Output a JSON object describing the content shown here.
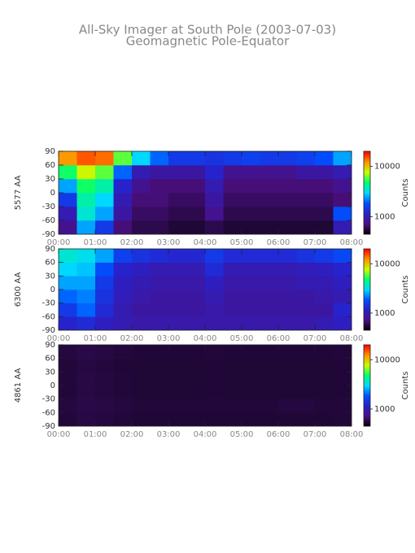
{
  "title": "All-Sky Imager at South Pole (2003-07-03)",
  "subtitle": "Geomagnetic Pole-Equator",
  "chart_data": [
    {
      "type": "heatmap",
      "ylabel": "5577 AA",
      "xbins": [
        0,
        0.5,
        1,
        1.5,
        2,
        2.5,
        3,
        3.5,
        4,
        4.5,
        5,
        5.5,
        6,
        6.5,
        7,
        7.5,
        8
      ],
      "ybins": [
        -90,
        -60,
        -30,
        0,
        30,
        60,
        90
      ],
      "z": [
        [
          800,
          2500,
          1500,
          700,
          600,
          600,
          550,
          550,
          600,
          550,
          550,
          550,
          550,
          550,
          550,
          1000
        ],
        [
          1000,
          3500,
          2500,
          900,
          650,
          650,
          600,
          600,
          800,
          600,
          600,
          600,
          600,
          600,
          600,
          1800
        ],
        [
          1500,
          4000,
          3000,
          1000,
          700,
          700,
          650,
          650,
          900,
          650,
          650,
          650,
          650,
          650,
          650,
          700
        ],
        [
          2500,
          5000,
          4000,
          1200,
          800,
          700,
          700,
          700,
          1000,
          700,
          700,
          700,
          700,
          700,
          700,
          800
        ],
        [
          5000,
          8000,
          6000,
          2000,
          1000,
          900,
          900,
          900,
          1200,
          800,
          800,
          800,
          800,
          900,
          900,
          1000
        ],
        [
          12000,
          15000,
          14000,
          6000,
          3000,
          2000,
          1500,
          1500,
          1400,
          1500,
          1600,
          1500,
          1500,
          1600,
          1800,
          2500
        ]
      ],
      "xlim": [
        0,
        8
      ],
      "xticks": [
        {
          "value": 0,
          "label": "00:00"
        },
        {
          "value": 1,
          "label": "01:00"
        },
        {
          "value": 2,
          "label": "02:00"
        },
        {
          "value": 3,
          "label": "03:00"
        },
        {
          "value": 4,
          "label": "04:00"
        },
        {
          "value": 5,
          "label": "05:00"
        },
        {
          "value": 6,
          "label": "06:00"
        },
        {
          "value": 7,
          "label": "07:00"
        },
        {
          "value": 8,
          "label": "08:00"
        }
      ],
      "ylim": [
        -90,
        90
      ],
      "yticks": [
        -90,
        -60,
        -30,
        0,
        30,
        60,
        90
      ],
      "colorbar_label": "Counts",
      "zscale": "log",
      "zlim": [
        450,
        20000
      ],
      "zticks": [
        1000,
        10000
      ],
      "colorscale": [
        "#000000",
        "#4a1080",
        "#2a20c8",
        "#0050ff",
        "#00d8ff",
        "#00ff70",
        "#c8ff00",
        "#ff9000",
        "#ff0000"
      ]
    },
    {
      "type": "heatmap",
      "ylabel": "6300 AA",
      "xbins": [
        0,
        0.5,
        1,
        1.5,
        2,
        2.5,
        3,
        3.5,
        4,
        4.5,
        5,
        5.5,
        6,
        6.5,
        7,
        7.5,
        8
      ],
      "ybins": [
        -90,
        -60,
        -30,
        0,
        30,
        60,
        90
      ],
      "z": [
        [
          1200,
          1300,
          1100,
          1000,
          950,
          950,
          950,
          950,
          950,
          950,
          950,
          950,
          950,
          950,
          1000,
          1100
        ],
        [
          1500,
          2000,
          1300,
          1000,
          900,
          900,
          900,
          900,
          950,
          900,
          900,
          900,
          900,
          900,
          900,
          1200
        ],
        [
          2000,
          2200,
          1400,
          1050,
          950,
          900,
          900,
          900,
          1000,
          900,
          900,
          900,
          900,
          900,
          950,
          1000
        ],
        [
          2500,
          2500,
          1500,
          1100,
          1000,
          950,
          950,
          950,
          1100,
          950,
          950,
          950,
          950,
          1000,
          1000,
          1100
        ],
        [
          3000,
          2800,
          1800,
          1200,
          1100,
          1000,
          1000,
          1000,
          1300,
          1000,
          1000,
          1000,
          1000,
          1050,
          1100,
          1200
        ],
        [
          3500,
          3200,
          2500,
          1600,
          1400,
          1300,
          1250,
          1250,
          1500,
          1300,
          1300,
          1300,
          1300,
          1400,
          1500,
          1700
        ]
      ],
      "xlim": [
        0,
        8
      ],
      "xticks": [
        {
          "value": 0,
          "label": "00:00"
        },
        {
          "value": 1,
          "label": "01:00"
        },
        {
          "value": 2,
          "label": "02:00"
        },
        {
          "value": 3,
          "label": "03:00"
        },
        {
          "value": 4,
          "label": "04:00"
        },
        {
          "value": 5,
          "label": "05:00"
        },
        {
          "value": 6,
          "label": "06:00"
        },
        {
          "value": 7,
          "label": "07:00"
        },
        {
          "value": 8,
          "label": "08:00"
        }
      ],
      "ylim": [
        -90,
        90
      ],
      "yticks": [
        -90,
        -60,
        -30,
        0,
        30,
        60,
        90
      ],
      "colorbar_label": "Counts",
      "zscale": "log",
      "zlim": [
        450,
        20000
      ],
      "zticks": [
        1000,
        10000
      ],
      "colorscale": [
        "#000000",
        "#4a1080",
        "#2a20c8",
        "#0050ff",
        "#00d8ff",
        "#00ff70",
        "#c8ff00",
        "#ff9000",
        "#ff0000"
      ]
    },
    {
      "type": "heatmap",
      "ylabel": "4861 AA",
      "xbins": [
        0,
        0.5,
        1,
        1.5,
        2,
        2.5,
        3,
        3.5,
        4,
        4.5,
        5,
        5.5,
        6,
        6.5,
        7,
        7.5,
        8
      ],
      "ybins": [
        -90,
        -60,
        -30,
        0,
        30,
        60,
        90
      ],
      "z": [
        [
          560,
          580,
          570,
          560,
          550,
          550,
          550,
          550,
          550,
          550,
          550,
          550,
          550,
          550,
          550,
          560
        ],
        [
          570,
          590,
          580,
          570,
          560,
          560,
          560,
          560,
          560,
          560,
          560,
          560,
          570,
          570,
          560,
          560
        ],
        [
          560,
          580,
          570,
          560,
          550,
          550,
          550,
          550,
          555,
          550,
          550,
          550,
          550,
          550,
          550,
          555
        ],
        [
          560,
          580,
          570,
          560,
          550,
          550,
          550,
          550,
          555,
          550,
          550,
          550,
          550,
          550,
          550,
          555
        ],
        [
          560,
          575,
          565,
          555,
          550,
          550,
          550,
          550,
          555,
          550,
          550,
          550,
          550,
          550,
          550,
          555
        ],
        [
          570,
          585,
          575,
          565,
          555,
          555,
          555,
          555,
          560,
          555,
          555,
          555,
          555,
          555,
          555,
          560
        ]
      ],
      "xlim": [
        0,
        8
      ],
      "xticks": [
        {
          "value": 0,
          "label": "00:00"
        },
        {
          "value": 1,
          "label": "01:00"
        },
        {
          "value": 2,
          "label": "02:00"
        },
        {
          "value": 3,
          "label": "03:00"
        },
        {
          "value": 4,
          "label": "04:00"
        },
        {
          "value": 5,
          "label": "05:00"
        },
        {
          "value": 6,
          "label": "06:00"
        },
        {
          "value": 7,
          "label": "07:00"
        },
        {
          "value": 8,
          "label": "08:00"
        }
      ],
      "ylim": [
        -90,
        90
      ],
      "yticks": [
        -90,
        -60,
        -30,
        0,
        30,
        60,
        90
      ],
      "colorbar_label": "Counts",
      "zscale": "log",
      "zlim": [
        450,
        20000
      ],
      "zticks": [
        1000,
        10000
      ],
      "colorscale": [
        "#000000",
        "#4a1080",
        "#2a20c8",
        "#0050ff",
        "#00d8ff",
        "#00ff70",
        "#c8ff00",
        "#ff9000",
        "#ff0000"
      ]
    }
  ]
}
